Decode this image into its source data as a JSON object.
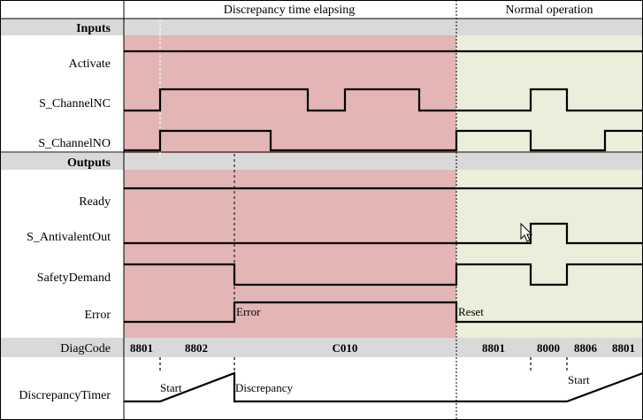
{
  "phases": {
    "discrepancy": "Discrepancy time elapsing",
    "normal": "Normal operation"
  },
  "sections": {
    "inputs": "Inputs",
    "outputs": "Outputs"
  },
  "signals": {
    "activate": "Activate",
    "s_channel_nc": "S_ChannelNC",
    "s_channel_no": "S_ChannelNO",
    "ready": "Ready",
    "s_antivalent_out": "S_AntivalentOut",
    "safety_demand": "SafetyDemand",
    "error": "Error",
    "diag_code": "DiagCode",
    "discrepancy_timer": "DiscrepancyTimer"
  },
  "annotations": {
    "error": "Error",
    "reset": "Reset",
    "start_1": "Start",
    "discrepancy": "Discrepancy",
    "start_2": "Start"
  },
  "diag_codes": [
    "8801",
    "8802",
    "C010",
    "8801",
    "8000",
    "8806",
    "8801"
  ],
  "colors": {
    "error_phase": "#e3b5b5",
    "normal_phase": "#ebeedb",
    "header_band": "#d9d9d9",
    "signal": "#000000"
  }
}
